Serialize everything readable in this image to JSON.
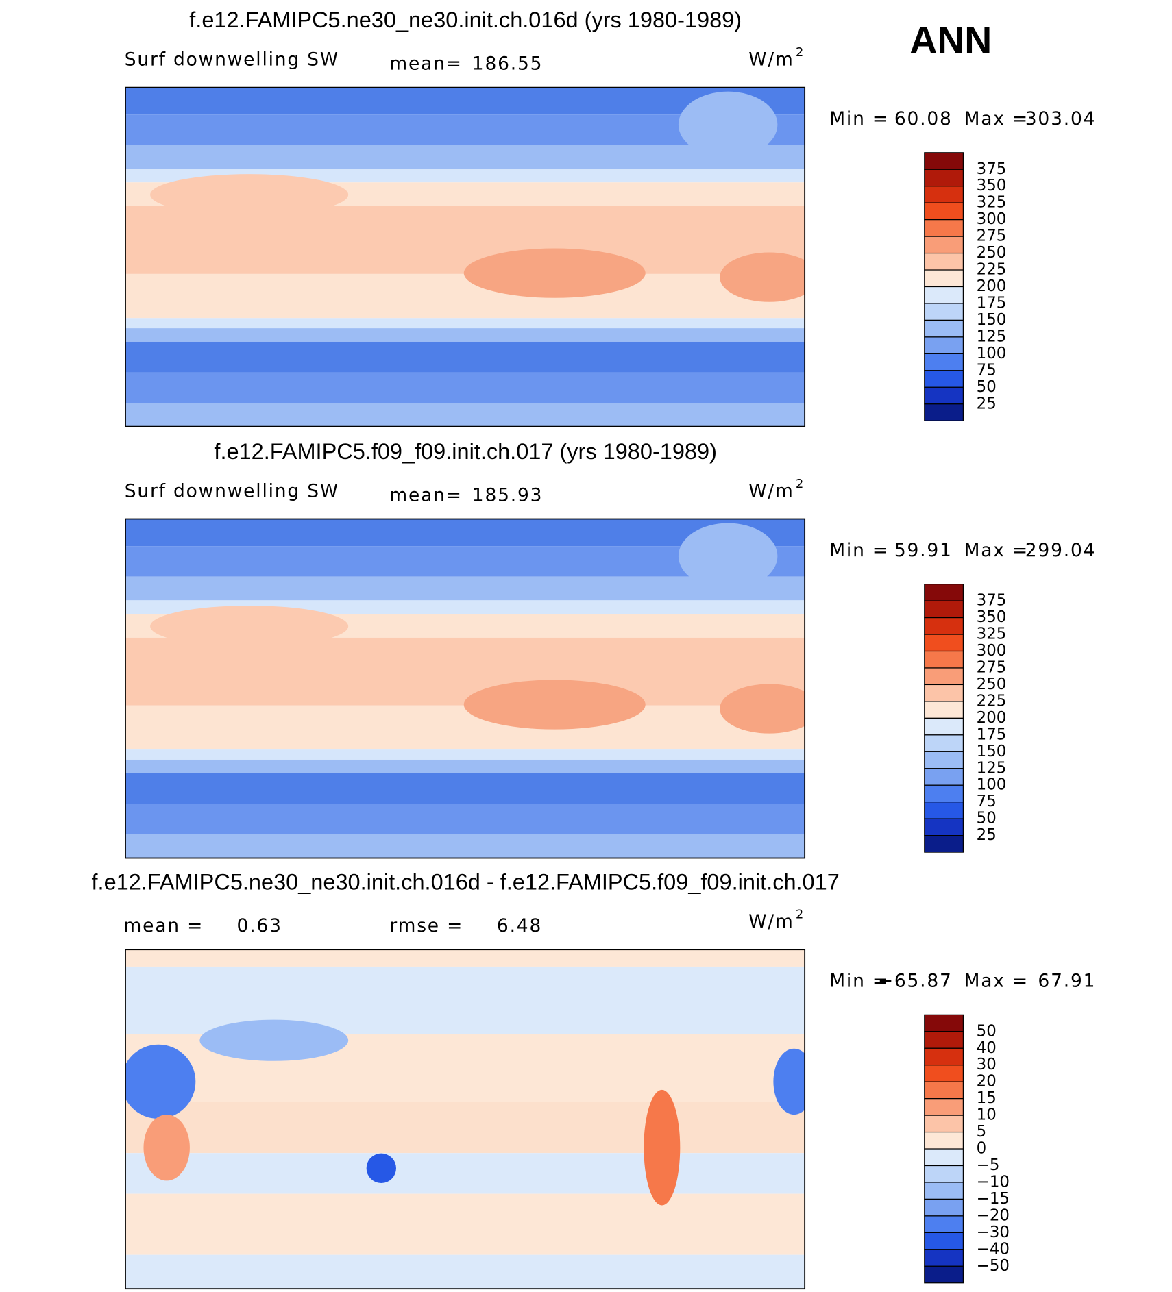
{
  "label": "ANN",
  "panels": [
    {
      "title": "f.e12.FAMIPC5.ne30_ne30.init.ch.016d (yrs 1980-1989)",
      "variable": "Surf downwelling SW",
      "stats": [
        {
          "name": "mean=",
          "value": 186.55
        }
      ],
      "units": "W/m",
      "units_exponent": 2,
      "min_label": "Min =",
      "min": 60.08,
      "max_label": "Max =",
      "max": 303.04,
      "levels": [
        375,
        350,
        325,
        300,
        275,
        250,
        225,
        200,
        175,
        150,
        125,
        100,
        75,
        50,
        25
      ]
    },
    {
      "title": "f.e12.FAMIPC5.f09_f09.init.ch.017 (yrs 1980-1989)",
      "variable": "Surf downwelling SW",
      "stats": [
        {
          "name": "mean=",
          "value": 185.93
        }
      ],
      "units": "W/m",
      "units_exponent": 2,
      "min_label": "Min =",
      "min": 59.91,
      "max_label": "Max =",
      "max": 299.04,
      "levels": [
        375,
        350,
        325,
        300,
        275,
        250,
        225,
        200,
        175,
        150,
        125,
        100,
        75,
        50,
        25
      ]
    },
    {
      "title": "f.e12.FAMIPC5.ne30_ne30.init.ch.016d - f.e12.FAMIPC5.f09_f09.init.ch.017",
      "stats": [
        {
          "name": "mean =",
          "value": 0.63
        },
        {
          "name": "rmse =",
          "value": 6.48
        }
      ],
      "units": "W/m",
      "units_exponent": 2,
      "min_label": "Min =",
      "min": {
        "value": -65.87,
        "label": "−65.87"
      },
      "max_label": "Max =",
      "max": 67.91,
      "levels": [
        50,
        40,
        30,
        20,
        15,
        10,
        5,
        0,
        {
          "value": -5,
          "label": "−5"
        },
        {
          "value": -10,
          "label": "−10"
        },
        {
          "value": -15,
          "label": "−15"
        },
        {
          "value": -20,
          "label": "−20"
        },
        {
          "value": -30,
          "label": "−30"
        },
        {
          "value": -40,
          "label": "−40"
        },
        {
          "value": -50,
          "label": "−50"
        }
      ]
    }
  ],
  "colors": [
    "#850909",
    "#b01a0a",
    "#d6300f",
    "#f04e1e",
    "#f6784a",
    "#f99d78",
    "#fcc4a8",
    "#fde7d6",
    "#dbe9fa",
    "#bdd5f8",
    "#9bbcf5",
    "#79a1f1",
    "#4d7ff0",
    "#2658e6",
    "#1534c2",
    "#0a1d8a"
  ]
}
